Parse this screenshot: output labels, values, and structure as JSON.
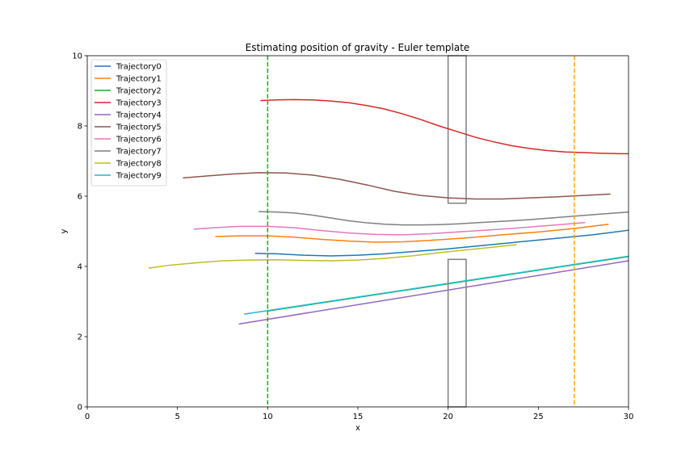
{
  "chart_data": {
    "type": "line",
    "title": "Estimating position of gravity - Euler template",
    "xlabel": "x",
    "ylabel": "y",
    "xlim": [
      0,
      30
    ],
    "ylim": [
      0,
      10
    ],
    "xticks": [
      0,
      5,
      10,
      15,
      20,
      25,
      30
    ],
    "yticks": [
      0,
      2,
      4,
      6,
      8,
      10
    ],
    "grid": false,
    "legend_position": "top-left",
    "series": [
      {
        "name": "Trajectory0",
        "color": "#1f77b4",
        "points": [
          [
            9.3,
            4.37
          ],
          [
            10.5,
            4.36
          ],
          [
            12.0,
            4.32
          ],
          [
            13.5,
            4.3
          ],
          [
            15.0,
            4.32
          ],
          [
            16.5,
            4.36
          ],
          [
            18.0,
            4.42
          ],
          [
            20.0,
            4.5
          ],
          [
            22.0,
            4.6
          ],
          [
            24.0,
            4.7
          ],
          [
            26.0,
            4.8
          ],
          [
            28.0,
            4.9
          ],
          [
            30.0,
            5.03
          ]
        ]
      },
      {
        "name": "Trajectory1",
        "color": "#ff7f0e",
        "points": [
          [
            7.1,
            4.85
          ],
          [
            8.5,
            4.87
          ],
          [
            10.0,
            4.87
          ],
          [
            11.5,
            4.83
          ],
          [
            13.0,
            4.77
          ],
          [
            14.5,
            4.72
          ],
          [
            16.0,
            4.69
          ],
          [
            17.5,
            4.7
          ],
          [
            19.0,
            4.74
          ],
          [
            21.0,
            4.81
          ],
          [
            23.0,
            4.9
          ],
          [
            25.0,
            4.98
          ],
          [
            27.0,
            5.08
          ],
          [
            28.9,
            5.2
          ]
        ]
      },
      {
        "name": "Trajectory2",
        "color": "#2ca02c",
        "points": [
          [
            10.0,
            2.73
          ],
          [
            30.0,
            4.28
          ]
        ]
      },
      {
        "name": "Trajectory3",
        "color": "#d62728",
        "points": [
          [
            9.6,
            8.72
          ],
          [
            10.5,
            8.74
          ],
          [
            11.5,
            8.75
          ],
          [
            12.5,
            8.74
          ],
          [
            13.5,
            8.71
          ],
          [
            14.5,
            8.66
          ],
          [
            15.5,
            8.58
          ],
          [
            16.5,
            8.48
          ],
          [
            17.5,
            8.34
          ],
          [
            18.5,
            8.18
          ],
          [
            19.5,
            8.0
          ],
          [
            20.5,
            7.84
          ],
          [
            21.5,
            7.68
          ],
          [
            22.5,
            7.55
          ],
          [
            23.5,
            7.44
          ],
          [
            24.5,
            7.36
          ],
          [
            25.5,
            7.3
          ],
          [
            26.5,
            7.26
          ],
          [
            27.5,
            7.24
          ],
          [
            28.5,
            7.22
          ],
          [
            29.5,
            7.21
          ],
          [
            30.0,
            7.21
          ]
        ]
      },
      {
        "name": "Trajectory4",
        "color": "#9467bd",
        "points": [
          [
            8.4,
            2.36
          ],
          [
            30.0,
            4.16
          ]
        ]
      },
      {
        "name": "Trajectory5",
        "color": "#8c564b",
        "points": [
          [
            5.3,
            6.52
          ],
          [
            6.5,
            6.57
          ],
          [
            8.0,
            6.63
          ],
          [
            9.5,
            6.67
          ],
          [
            11.0,
            6.66
          ],
          [
            12.5,
            6.6
          ],
          [
            14.0,
            6.48
          ],
          [
            15.5,
            6.32
          ],
          [
            17.0,
            6.14
          ],
          [
            18.5,
            6.02
          ],
          [
            20.0,
            5.95
          ],
          [
            21.5,
            5.92
          ],
          [
            23.0,
            5.92
          ],
          [
            24.5,
            5.95
          ],
          [
            26.0,
            5.98
          ],
          [
            27.5,
            6.02
          ],
          [
            29.0,
            6.06
          ]
        ]
      },
      {
        "name": "Trajectory6",
        "color": "#e377c2",
        "points": [
          [
            5.9,
            5.06
          ],
          [
            7.0,
            5.1
          ],
          [
            8.5,
            5.14
          ],
          [
            10.0,
            5.14
          ],
          [
            11.5,
            5.1
          ],
          [
            13.0,
            5.02
          ],
          [
            14.5,
            4.95
          ],
          [
            16.0,
            4.91
          ],
          [
            17.5,
            4.9
          ],
          [
            19.0,
            4.93
          ],
          [
            20.5,
            4.98
          ],
          [
            22.0,
            5.03
          ],
          [
            23.5,
            5.08
          ],
          [
            25.0,
            5.14
          ],
          [
            26.5,
            5.2
          ],
          [
            27.6,
            5.25
          ]
        ]
      },
      {
        "name": "Trajectory7",
        "color": "#7f7f7f",
        "points": [
          [
            9.5,
            5.56
          ],
          [
            10.5,
            5.55
          ],
          [
            11.5,
            5.52
          ],
          [
            12.5,
            5.46
          ],
          [
            13.5,
            5.38
          ],
          [
            14.5,
            5.3
          ],
          [
            15.5,
            5.24
          ],
          [
            16.5,
            5.2
          ],
          [
            17.5,
            5.18
          ],
          [
            18.5,
            5.18
          ],
          [
            19.5,
            5.19
          ],
          [
            20.5,
            5.21
          ],
          [
            21.5,
            5.24
          ],
          [
            22.5,
            5.27
          ],
          [
            23.5,
            5.3
          ],
          [
            24.5,
            5.33
          ],
          [
            25.5,
            5.37
          ],
          [
            26.5,
            5.41
          ],
          [
            27.5,
            5.45
          ],
          [
            28.5,
            5.49
          ],
          [
            29.5,
            5.53
          ],
          [
            30.0,
            5.55
          ]
        ]
      },
      {
        "name": "Trajectory8",
        "color": "#bcbd22",
        "points": [
          [
            3.4,
            3.95
          ],
          [
            4.5,
            4.03
          ],
          [
            6.0,
            4.1
          ],
          [
            7.5,
            4.16
          ],
          [
            9.0,
            4.18
          ],
          [
            10.5,
            4.19
          ],
          [
            12.0,
            4.17
          ],
          [
            13.5,
            4.16
          ],
          [
            15.0,
            4.18
          ],
          [
            16.5,
            4.23
          ],
          [
            18.0,
            4.3
          ],
          [
            19.5,
            4.39
          ],
          [
            21.0,
            4.47
          ],
          [
            22.5,
            4.55
          ],
          [
            23.8,
            4.62
          ]
        ]
      },
      {
        "name": "Trajectory9",
        "color": "#17becf",
        "points": [
          [
            8.7,
            2.64
          ],
          [
            30.0,
            4.29
          ]
        ]
      }
    ],
    "vertical_lines": [
      {
        "x": 10.0,
        "color": "#2ca02c",
        "style": "dashed"
      },
      {
        "x": 27.0,
        "color": "#ffa500",
        "style": "dashed"
      }
    ],
    "obstacles": [
      {
        "x0": 20.0,
        "x1": 21.0,
        "y0": 5.8,
        "y1": 10.0,
        "color": "#7f7f7f"
      },
      {
        "x0": 20.0,
        "x1": 21.0,
        "y0": 0.0,
        "y1": 4.2,
        "color": "#7f7f7f"
      }
    ]
  }
}
